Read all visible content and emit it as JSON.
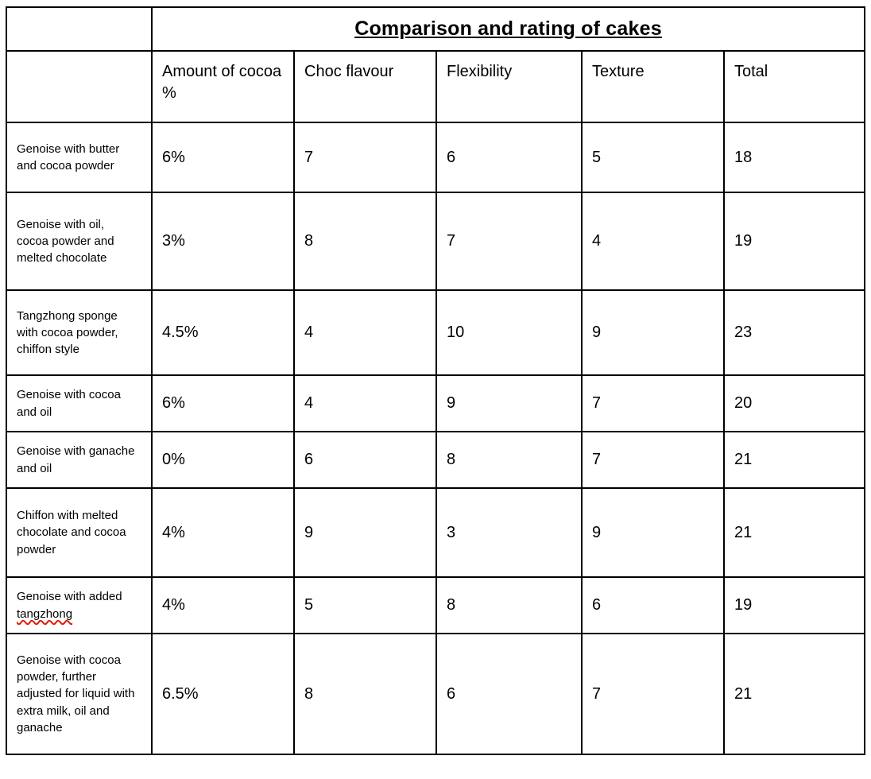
{
  "colors": {
    "text": "#000000",
    "border": "#000000",
    "background": "#ffffff",
    "spellcheck_underline": "#e11b0e"
  },
  "table": {
    "title": "Comparison and rating of cakes",
    "columns": [
      "Amount of cocoa %",
      "Choc flavour",
      "Flexibility",
      "Texture",
      "Total"
    ],
    "rows": [
      {
        "label": "Genoise with butter and cocoa powder",
        "values": [
          "6%",
          "7",
          "6",
          "5",
          "18"
        ]
      },
      {
        "label": "Genoise with oil, cocoa powder and melted chocolate",
        "values": [
          "3%",
          "8",
          "7",
          "4",
          "19"
        ]
      },
      {
        "label": "Tangzhong sponge with cocoa powder, chiffon style",
        "values": [
          "4.5%",
          "4",
          "10",
          "9",
          "23"
        ]
      },
      {
        "label": "Genoise with cocoa and oil",
        "values": [
          "6%",
          "4",
          "9",
          "7",
          "20"
        ]
      },
      {
        "label": "Genoise with ganache and oil",
        "values": [
          "0%",
          "6",
          "8",
          "7",
          "21"
        ]
      },
      {
        "label": "Chiffon with melted chocolate and cocoa powder",
        "values": [
          "4%",
          "9",
          "3",
          "9",
          "21"
        ]
      },
      {
        "label": "Genoise with added tangzhong",
        "misspelled_word": "tangzhong",
        "values": [
          "4%",
          "5",
          "8",
          "6",
          "19"
        ]
      },
      {
        "label": "Genoise with cocoa powder, further adjusted for liquid with extra milk, oil and ganache",
        "values": [
          "6.5%",
          "8",
          "6",
          "7",
          "21"
        ]
      }
    ]
  }
}
